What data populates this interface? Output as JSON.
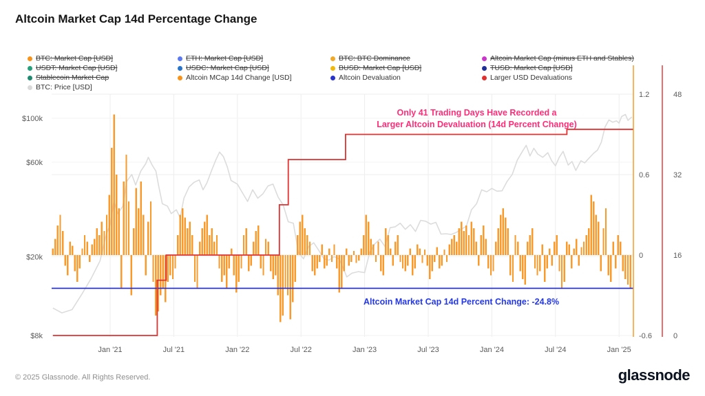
{
  "header": {
    "title": "Altcoin Market Cap 14d Percentage Change"
  },
  "legend": {
    "items": [
      {
        "label": "BTC: Market Cap [USD]",
        "color": "#f7931a",
        "struck": true
      },
      {
        "label": "ETH: Market Cap [USD]",
        "color": "#5b79f0",
        "struck": true
      },
      {
        "label": "BTC: BTC Dominance",
        "color": "#f0a929",
        "struck": true
      },
      {
        "label": "Altcoin Market Cap (minus ETH and Stables)",
        "color": "#c936c9",
        "struck": true
      },
      {
        "label": "USDT: Market Cap [USD]",
        "color": "#26a17b",
        "struck": true
      },
      {
        "label": "USDC: Market Cap [USD]",
        "color": "#2775ca",
        "struck": true
      },
      {
        "label": "BUSD: Market Cap [USD]",
        "color": "#f0b90b",
        "struck": true
      },
      {
        "label": "TUSD: Market Cap [USD]",
        "color": "#1f2f98",
        "struck": true
      },
      {
        "label": "Stablecoin Market Cap",
        "color": "#1f8a70",
        "struck": true
      },
      {
        "label": "Altcoin MCap 14d Change [USD]",
        "color": "#f7931a",
        "struck": false
      },
      {
        "label": "Altcoin Devaluation",
        "color": "#2733c9",
        "struck": false
      },
      {
        "label": "Larger USD Devaluations",
        "color": "#e03131",
        "struck": false
      },
      {
        "label": "BTC: Price [USD]",
        "color": "#d9d9d9",
        "struck": false
      }
    ]
  },
  "annotations": {
    "devaluation_note_line1": "Only 41 Trading Days Have Recorded a",
    "devaluation_note_line2": "Larger Altcoin Devaluation (14d  Percent Change)",
    "devaluation_note_color": "#ff2d78",
    "pct_change_label": "Altcoin Market Cap 14d Percent Change: -24.8%",
    "pct_change_color": "#2438e8"
  },
  "footer": {
    "copyright": "© 2025 Glassnode. All Rights Reserved.",
    "logo": "glassnode"
  },
  "chart_data": {
    "type": "mixed",
    "title": "Altcoin Market Cap 14d Percentage Change",
    "grid": true,
    "legend_position": "top",
    "x_domain": [
      2020.55,
      2025.1
    ],
    "x_ticks": [
      {
        "t": 2021.0,
        "label": "Jan '21"
      },
      {
        "t": 2021.5,
        "label": "Jul '21"
      },
      {
        "t": 2022.0,
        "label": "Jan '22"
      },
      {
        "t": 2022.5,
        "label": "Jul '22"
      },
      {
        "t": 2023.0,
        "label": "Jan '23"
      },
      {
        "t": 2023.5,
        "label": "Jul '23"
      },
      {
        "t": 2024.0,
        "label": "Jan '24"
      },
      {
        "t": 2024.5,
        "label": "Jul '24"
      },
      {
        "t": 2025.0,
        "label": "Jan '25"
      }
    ],
    "left_axis": {
      "name": "BTC: Price [USD]",
      "scale": "log",
      "ticks": [
        {
          "v": 100000,
          "label": "$100k"
        },
        {
          "v": 60000,
          "label": "$60k"
        },
        {
          "v": 20000,
          "label": "$20k"
        },
        {
          "v": 8000,
          "label": "$8k"
        }
      ]
    },
    "right_axis_pct": {
      "name": "Altcoin MCap 14d Change",
      "color": "#f7931a",
      "ticks": [
        {
          "v": 1.2,
          "label": "1.2"
        },
        {
          "v": 0.6,
          "label": "0.6"
        },
        {
          "v": 0,
          "label": "0"
        },
        {
          "v": -0.6,
          "label": "-0.6"
        }
      ]
    },
    "right_axis_count": {
      "name": "Larger USD Devaluations",
      "color": "#e03131",
      "ticks": [
        {
          "v": 48,
          "label": "48"
        },
        {
          "v": 32,
          "label": "32"
        },
        {
          "v": 16,
          "label": "16"
        },
        {
          "v": 0,
          "label": "0"
        }
      ]
    },
    "series": {
      "altcoin_mcap_14d_change": {
        "name": "Altcoin MCap 14d Change [USD]",
        "type": "bar",
        "color": "#f7931a",
        "t0": 2020.55,
        "dt": 0.019231,
        "values": [
          0.05,
          0.12,
          0.22,
          0.3,
          0.18,
          -0.08,
          -0.15,
          0.1,
          0.07,
          -0.12,
          -0.2,
          -0.1,
          0.05,
          0.15,
          0.1,
          -0.05,
          0.08,
          0.12,
          0.2,
          0.15,
          0.25,
          0.18,
          0.3,
          0.45,
          0.8,
          1.05,
          0.6,
          0.35,
          -0.25,
          0.55,
          0.75,
          0.4,
          -0.3,
          0.2,
          0.5,
          0.35,
          0.55,
          0.3,
          -0.15,
          0.25,
          0.4,
          -0.2,
          -0.45,
          -0.42,
          -0.3,
          -0.25,
          -0.35,
          -0.2,
          -0.15,
          -0.18,
          -0.1,
          0.15,
          0.3,
          0.35,
          0.28,
          0.2,
          0.25,
          0.15,
          -0.2,
          -0.25,
          0.1,
          0.2,
          0.25,
          0.3,
          0.15,
          0.2,
          0.1,
          0.15,
          -0.1,
          -0.2,
          -0.15,
          -0.25,
          -0.1,
          0.05,
          -0.15,
          -0.28,
          -0.2,
          -0.1,
          0.15,
          0.2,
          -0.12,
          -0.08,
          0.1,
          0.18,
          0.22,
          -0.1,
          -0.15,
          0.12,
          0.1,
          -0.12,
          -0.18,
          -0.15,
          -0.3,
          -0.5,
          -0.45,
          -0.25,
          -0.3,
          -0.48,
          -0.35,
          -0.2,
          0.15,
          0.25,
          0.3,
          0.2,
          0.15,
          0.1,
          -0.12,
          -0.15,
          -0.1,
          -0.05,
          0.08,
          -0.1,
          -0.08,
          0.05,
          -0.05,
          0.08,
          -0.1,
          -0.28,
          -0.25,
          -0.12,
          0.05,
          -0.08,
          -0.05,
          0.03,
          -0.06,
          -0.04,
          0.05,
          0.15,
          0.3,
          0.25,
          0.12,
          0.08,
          -0.05,
          0.1,
          -0.12,
          -0.15,
          0.2,
          0.15,
          0.05,
          -0.08,
          0.1,
          0.15,
          -0.05,
          -0.1,
          -0.12,
          -0.08,
          0.05,
          -0.15,
          -0.1,
          0.08,
          0.05,
          -0.06,
          0.04,
          -0.08,
          -0.18,
          -0.12,
          -0.05,
          0.06,
          -0.1,
          -0.08,
          0.04,
          -0.05,
          0.08,
          0.12,
          0.15,
          0.1,
          0.2,
          0.25,
          0.18,
          0.22,
          0.15,
          0.25,
          0.2,
          0.1,
          -0.08,
          0.15,
          0.22,
          0.12,
          -0.1,
          -0.15,
          -0.12,
          0.1,
          0.2,
          0.3,
          0.35,
          0.28,
          0.2,
          -0.15,
          -0.2,
          0.15,
          0.1,
          -0.12,
          -0.18,
          -0.22,
          0.1,
          0.15,
          0.2,
          -0.1,
          -0.15,
          -0.12,
          0.08,
          -0.2,
          -0.1,
          0.05,
          -0.08,
          0.1,
          0.15,
          -0.12,
          -0.25,
          -0.2,
          0.1,
          0.08,
          -0.1,
          0.05,
          0.12,
          -0.08,
          0.06,
          0.1,
          0.15,
          0.2,
          0.45,
          0.4,
          0.3,
          0.25,
          -0.12,
          0.2,
          0.35,
          -0.15,
          -0.2,
          0.1,
          -0.1,
          0.15,
          0.1,
          -0.12,
          -0.18,
          -0.22,
          -0.248
        ]
      },
      "btc_price": {
        "name": "BTC: Price [USD]",
        "type": "line",
        "color": "#dcdcdc",
        "points": [
          [
            2020.55,
            11000
          ],
          [
            2020.62,
            10400
          ],
          [
            2020.7,
            10800
          ],
          [
            2020.78,
            13000
          ],
          [
            2020.85,
            15500
          ],
          [
            2020.92,
            19000
          ],
          [
            2020.97,
            26000
          ],
          [
            2021.0,
            29000
          ],
          [
            2021.03,
            38000
          ],
          [
            2021.06,
            33000
          ],
          [
            2021.1,
            36000
          ],
          [
            2021.13,
            48000
          ],
          [
            2021.17,
            52000
          ],
          [
            2021.2,
            46000
          ],
          [
            2021.24,
            54000
          ],
          [
            2021.28,
            59000
          ],
          [
            2021.3,
            63500
          ],
          [
            2021.33,
            58000
          ],
          [
            2021.36,
            54000
          ],
          [
            2021.38,
            46000
          ],
          [
            2021.41,
            37000
          ],
          [
            2021.45,
            36000
          ],
          [
            2021.48,
            33000
          ],
          [
            2021.52,
            34500
          ],
          [
            2021.55,
            31500
          ],
          [
            2021.58,
            39500
          ],
          [
            2021.62,
            45000
          ],
          [
            2021.66,
            47500
          ],
          [
            2021.7,
            48800
          ],
          [
            2021.73,
            43500
          ],
          [
            2021.76,
            47000
          ],
          [
            2021.8,
            55000
          ],
          [
            2021.83,
            61500
          ],
          [
            2021.86,
            67500
          ],
          [
            2021.89,
            64000
          ],
          [
            2021.92,
            57000
          ],
          [
            2021.95,
            48500
          ],
          [
            2022.0,
            46500
          ],
          [
            2022.04,
            42000
          ],
          [
            2022.08,
            38000
          ],
          [
            2022.12,
            43500
          ],
          [
            2022.16,
            39500
          ],
          [
            2022.2,
            41500
          ],
          [
            2022.24,
            45500
          ],
          [
            2022.28,
            46500
          ],
          [
            2022.32,
            40000
          ],
          [
            2022.36,
            36500
          ],
          [
            2022.4,
            30000
          ],
          [
            2022.44,
            29500
          ],
          [
            2022.48,
            21000
          ],
          [
            2022.52,
            19500
          ],
          [
            2022.56,
            22500
          ],
          [
            2022.6,
            23500
          ],
          [
            2022.64,
            21500
          ],
          [
            2022.68,
            19500
          ],
          [
            2022.72,
            19200
          ],
          [
            2022.76,
            20000
          ],
          [
            2022.8,
            19500
          ],
          [
            2022.84,
            17000
          ],
          [
            2022.86,
            15800
          ],
          [
            2022.9,
            16500
          ],
          [
            2022.95,
            16800
          ],
          [
            2023.0,
            16600
          ],
          [
            2023.04,
            21000
          ],
          [
            2023.08,
            23200
          ],
          [
            2023.12,
            24500
          ],
          [
            2023.16,
            22500
          ],
          [
            2023.2,
            28000
          ],
          [
            2023.24,
            28300
          ],
          [
            2023.28,
            29500
          ],
          [
            2023.32,
            27500
          ],
          [
            2023.36,
            29000
          ],
          [
            2023.4,
            26800
          ],
          [
            2023.44,
            30500
          ],
          [
            2023.48,
            30200
          ],
          [
            2023.52,
            29200
          ],
          [
            2023.56,
            29800
          ],
          [
            2023.6,
            26000
          ],
          [
            2023.64,
            26100
          ],
          [
            2023.68,
            25900
          ],
          [
            2023.72,
            26500
          ],
          [
            2023.76,
            27500
          ],
          [
            2023.8,
            28500
          ],
          [
            2023.84,
            34500
          ],
          [
            2023.88,
            37000
          ],
          [
            2023.92,
            43500
          ],
          [
            2023.96,
            42500
          ],
          [
            2024.0,
            44200
          ],
          [
            2024.04,
            42800
          ],
          [
            2024.08,
            43000
          ],
          [
            2024.12,
            48000
          ],
          [
            2024.16,
            52000
          ],
          [
            2024.2,
            61500
          ],
          [
            2024.24,
            68000
          ],
          [
            2024.27,
            73000
          ],
          [
            2024.3,
            64500
          ],
          [
            2024.33,
            70500
          ],
          [
            2024.36,
            66000
          ],
          [
            2024.4,
            63500
          ],
          [
            2024.44,
            67000
          ],
          [
            2024.47,
            61000
          ],
          [
            2024.5,
            57500
          ],
          [
            2024.53,
            63500
          ],
          [
            2024.56,
            68000
          ],
          [
            2024.6,
            58000
          ],
          [
            2024.63,
            60500
          ],
          [
            2024.66,
            54500
          ],
          [
            2024.7,
            61000
          ],
          [
            2024.73,
            59500
          ],
          [
            2024.76,
            62500
          ],
          [
            2024.8,
            66500
          ],
          [
            2024.83,
            69000
          ],
          [
            2024.86,
            75500
          ],
          [
            2024.89,
            90500
          ],
          [
            2024.92,
            98000
          ],
          [
            2024.95,
            95500
          ],
          [
            2024.98,
            97000
          ],
          [
            2025.0,
            94500
          ],
          [
            2025.02,
            102000
          ],
          [
            2025.05,
            104500
          ],
          [
            2025.07,
            97500
          ],
          [
            2025.1,
            101500
          ]
        ]
      },
      "larger_usd_devaluations": {
        "name": "Larger USD Devaluations",
        "type": "step-line",
        "color": "#e03131",
        "final_value": 41,
        "points": [
          [
            2020.55,
            0
          ],
          [
            2021.37,
            11
          ],
          [
            2021.44,
            16
          ],
          [
            2022.33,
            26
          ],
          [
            2022.4,
            35
          ],
          [
            2022.85,
            40
          ],
          [
            2024.59,
            41
          ]
        ]
      },
      "altcoin_devaluation": {
        "name": "Altcoin Devaluation",
        "type": "hline",
        "color": "#2733c9",
        "value": -0.248
      }
    }
  }
}
